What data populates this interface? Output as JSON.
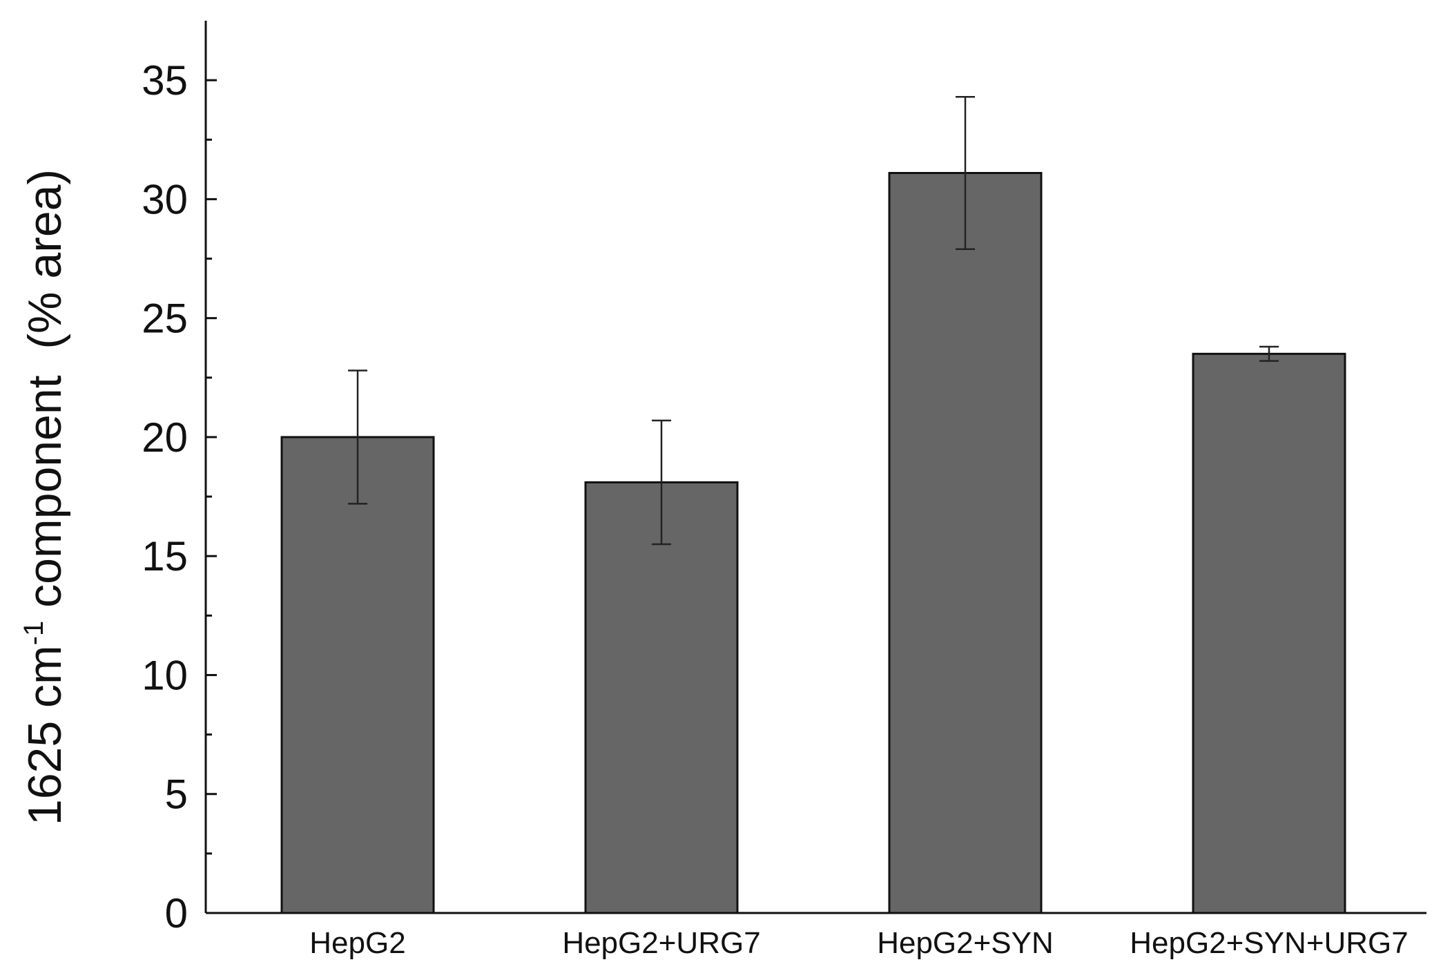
{
  "chart_data": {
    "type": "bar",
    "categories": [
      "HepG2",
      "HepG2+URG7",
      "HepG2+SYN",
      "HepG2+SYN+URG7"
    ],
    "values": [
      20.0,
      18.1,
      31.1,
      23.5
    ],
    "errors": [
      2.8,
      2.6,
      3.2,
      0.3
    ],
    "ylabel": {
      "prefix": "1625 cm",
      "superscript": "-1",
      "suffix": " component  (% area)"
    },
    "ylim": [
      0,
      37.5
    ],
    "yticks": [
      "0",
      "5",
      "10",
      "15",
      "20",
      "25",
      "30",
      "35"
    ],
    "grid": false,
    "colors": {
      "bar_fill": "#666666",
      "bar_stroke": "#111111",
      "axis": "#111111",
      "error_bar": "#222222"
    }
  }
}
